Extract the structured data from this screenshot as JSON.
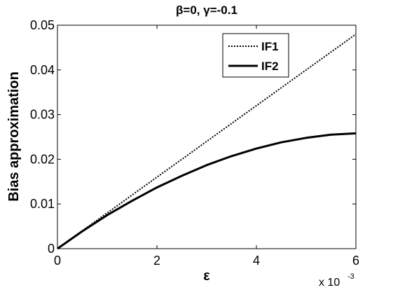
{
  "chart_data": {
    "type": "line",
    "title": "β=0, γ=-0.1",
    "xlabel": "ε",
    "ylabel": "Bias approximation",
    "x_exponent_base": "x 10",
    "x_exponent_power": "-3",
    "xlim": [
      0,
      6
    ],
    "ylim": [
      0,
      0.05
    ],
    "xticks": [
      0,
      2,
      4,
      6
    ],
    "xtick_labels": [
      "0",
      "2",
      "4",
      "6"
    ],
    "yticks": [
      0,
      0.01,
      0.02,
      0.03,
      0.04,
      0.05
    ],
    "ytick_labels": [
      "0",
      "0.01",
      "0.02",
      "0.03",
      "0.04",
      "0.05"
    ],
    "grid": false,
    "legend_position": "top-right",
    "series": [
      {
        "name": "IF1",
        "style": "dotted",
        "color": "#000000",
        "x": [
          0,
          1,
          2,
          3,
          4,
          5,
          6
        ],
        "y": [
          0,
          0.008,
          0.016,
          0.024,
          0.032,
          0.04,
          0.048
        ]
      },
      {
        "name": "IF2",
        "style": "solid",
        "color": "#000000",
        "x": [
          0,
          0.5,
          1,
          1.5,
          2,
          2.5,
          3,
          3.5,
          4,
          4.5,
          5,
          5.5,
          6
        ],
        "y": [
          0,
          0.0039,
          0.0075,
          0.0107,
          0.0137,
          0.0163,
          0.0187,
          0.0207,
          0.0224,
          0.0238,
          0.0248,
          0.0255,
          0.0258
        ]
      }
    ]
  }
}
